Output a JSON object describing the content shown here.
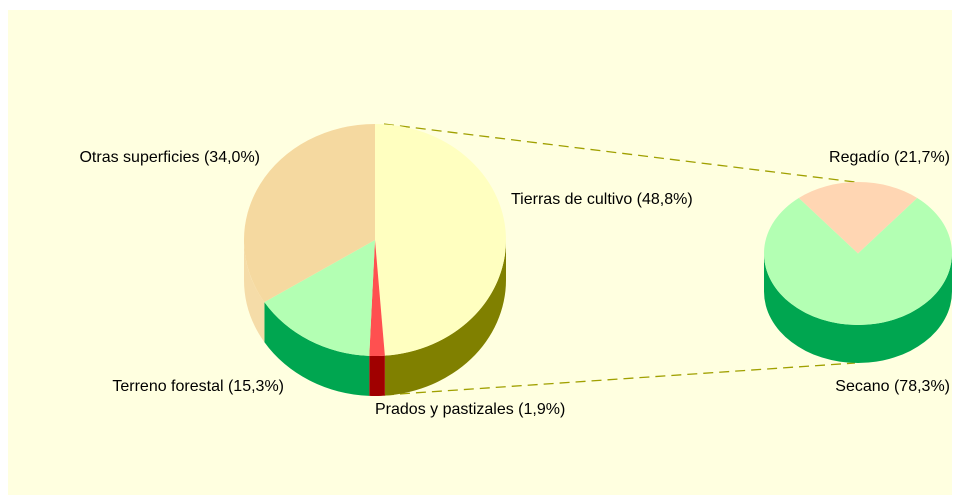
{
  "chart_data": [
    {
      "type": "pie",
      "categories": [
        "Tierras de cultivo (48,8%)",
        "Prados y pastizales (1,9%)",
        "Terreno forestal (15,3%)",
        "Otras superficies (34,0%)"
      ],
      "values": [
        48.8,
        1.9,
        15.3,
        34.0
      ],
      "colors": [
        "#ffffc0",
        "#ff5050",
        "#b3ffb3",
        "#f5d9a0"
      ],
      "side_colors": [
        "#808000",
        "#a00000",
        "#00a650",
        "#f5dca8"
      ]
    },
    {
      "type": "pie",
      "categories": [
        "Regadío (21,7%)",
        "Secano (78,3%)"
      ],
      "values": [
        21.7,
        78.3
      ],
      "colors": [
        "#ffd6b3",
        "#b3ffb3"
      ],
      "side_colors": [
        "#e0a070",
        "#00a650"
      ]
    }
  ]
}
